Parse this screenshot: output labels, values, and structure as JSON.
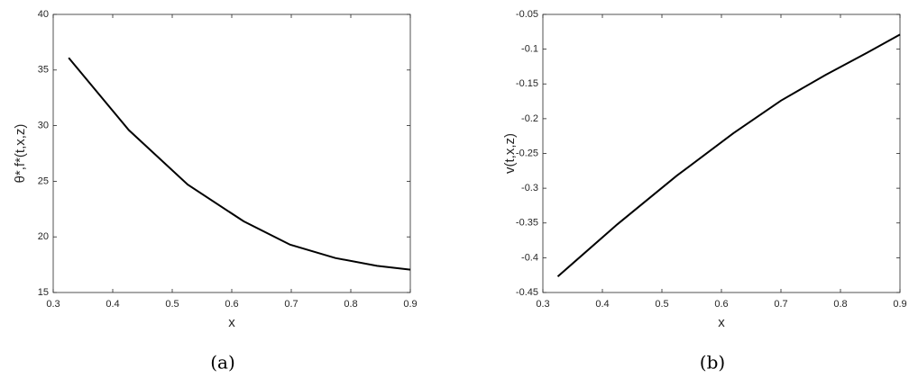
{
  "chart_data": [
    {
      "type": "line",
      "caption": "(a)",
      "xlabel": "x",
      "ylabel": "θ*,f*(t,x,z)",
      "x": [
        0.326,
        0.427,
        0.526,
        0.62,
        0.698,
        0.774,
        0.844,
        0.9
      ],
      "series": [
        {
          "color": "#000000",
          "values": [
            36.1,
            29.6,
            24.7,
            21.4,
            19.3,
            18.1,
            17.4,
            17.05
          ]
        }
      ],
      "xlim": [
        0.3,
        0.9
      ],
      "xticks": [
        0.3,
        0.4,
        0.5,
        0.6,
        0.7,
        0.8,
        0.9
      ],
      "ylim": [
        15,
        40
      ],
      "yticks": [
        15,
        20,
        25,
        30,
        35,
        40
      ]
    },
    {
      "type": "line",
      "caption": "(b)",
      "xlabel": "x",
      "ylabel": "v(t,x,z)",
      "x": [
        0.325,
        0.425,
        0.525,
        0.62,
        0.7,
        0.775,
        0.845,
        0.9
      ],
      "series": [
        {
          "color": "#000000",
          "values": [
            -0.427,
            -0.352,
            -0.282,
            -0.221,
            -0.174,
            -0.137,
            -0.105,
            -0.079
          ]
        }
      ],
      "xlim": [
        0.3,
        0.9
      ],
      "xticks": [
        0.3,
        0.4,
        0.5,
        0.6,
        0.7,
        0.8,
        0.9
      ],
      "ylim": [
        -0.45,
        -0.05
      ],
      "yticks": [
        -0.45,
        -0.4,
        -0.35,
        -0.3,
        -0.25,
        -0.2,
        -0.15,
        -0.1,
        -0.05
      ]
    }
  ]
}
